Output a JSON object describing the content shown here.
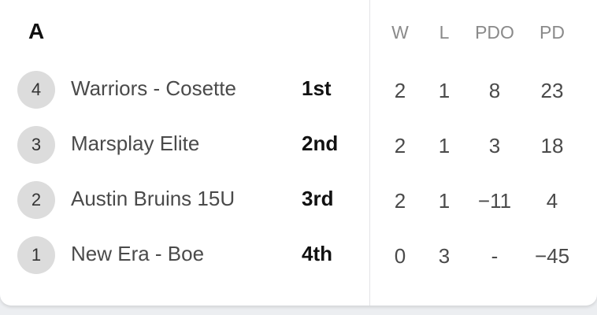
{
  "group": {
    "title": "A"
  },
  "columns": {
    "w": "W",
    "l": "L",
    "pdo": "PDO",
    "pd": "PD"
  },
  "teams": [
    {
      "seed": "4",
      "name": "Warriors - Cosette",
      "place": "1st",
      "w": "2",
      "l": "1",
      "pdo": "8",
      "pd": "23"
    },
    {
      "seed": "3",
      "name": "Marsplay Elite",
      "place": "2nd",
      "w": "2",
      "l": "1",
      "pdo": "3",
      "pd": "18"
    },
    {
      "seed": "2",
      "name": "Austin Bruins 15U",
      "place": "3rd",
      "w": "2",
      "l": "1",
      "pdo": "−11",
      "pd": "4"
    },
    {
      "seed": "1",
      "name": "New Era - Boe",
      "place": "4th",
      "w": "0",
      "l": "3",
      "pdo": "-",
      "pd": "−45"
    }
  ]
}
